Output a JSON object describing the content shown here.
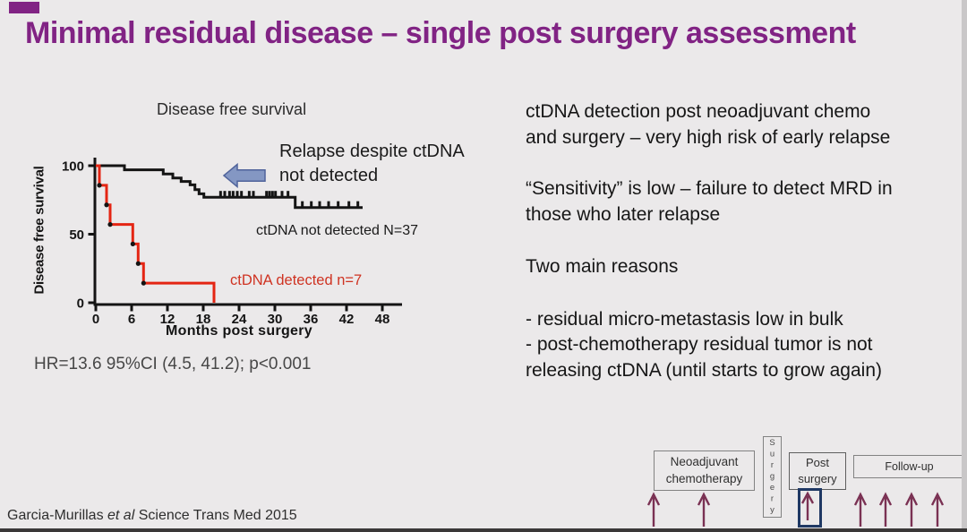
{
  "slide": {
    "title": "Minimal residual disease – single post surgery assessment",
    "citation": {
      "prefix": "Garcia-Murillas ",
      "italic": "et al",
      "suffix": " Science Trans Med 2015"
    }
  },
  "colors": {
    "accent_purple": "#812384",
    "curve_black": "#141414",
    "curve_red": "#e42513",
    "legend_red": "#cf3322",
    "annotation_arrow_blue": "#8497c3",
    "timeline_arrow_maroon": "#7a3153",
    "highlight_navy": "#1f3864"
  },
  "right_text": {
    "p1": "ctDNA detection post neoadjuvant chemo\nand surgery – very high risk of early relapse",
    "p2": "“Sensitivity” is low – failure to detect MRD in\nthose who later relapse",
    "p3": "Two main reasons",
    "p4": "- residual micro-metastasis low in bulk",
    "p5": "- post-chemotherapy residual tumor is not\nreleasing ctDNA (until starts to grow again)"
  },
  "chart_data": {
    "type": "line",
    "subtype": "kaplan-meier-step",
    "title": "Disease free survival",
    "xlabel": "Months post surgery",
    "ylabel": "Disease free survival",
    "xlim": [
      0,
      48
    ],
    "ylim": [
      0,
      100
    ],
    "xticks": [
      0,
      6,
      12,
      18,
      24,
      30,
      36,
      42,
      48
    ],
    "yticks": [
      0,
      50,
      100
    ],
    "grid": false,
    "annotation": "Relapse despite ctDNA\nnot detected",
    "hr_text": "HR=13.6 95%CI (4.5, 41.2); p<0.001",
    "series": [
      {
        "name": "ctDNA not detected N=37",
        "color": "#141414",
        "steps": [
          [
            0,
            100
          ],
          [
            4.8,
            100
          ],
          [
            4.8,
            97
          ],
          [
            11.3,
            97
          ],
          [
            11.3,
            94
          ],
          [
            12.9,
            94
          ],
          [
            12.9,
            91
          ],
          [
            14.3,
            91
          ],
          [
            14.3,
            88.5
          ],
          [
            15.8,
            88.5
          ],
          [
            15.8,
            86
          ],
          [
            16.6,
            86
          ],
          [
            16.6,
            82.5
          ],
          [
            17.3,
            82.5
          ],
          [
            17.3,
            79.5
          ],
          [
            18.1,
            79.5
          ],
          [
            18.1,
            77
          ],
          [
            33.4,
            77
          ],
          [
            33.4,
            69.5
          ],
          [
            44.7,
            69.5
          ]
        ],
        "censor_marks": [
          [
            20.9,
            77
          ],
          [
            21.6,
            77
          ],
          [
            22.4,
            77
          ],
          [
            23.0,
            77
          ],
          [
            23.7,
            77
          ],
          [
            24.4,
            77
          ],
          [
            25.7,
            77
          ],
          [
            26.4,
            77
          ],
          [
            28.6,
            77
          ],
          [
            29.1,
            77
          ],
          [
            29.6,
            77
          ],
          [
            30.1,
            77
          ],
          [
            31.2,
            77
          ],
          [
            32.2,
            77
          ],
          [
            34.6,
            69.5
          ],
          [
            36.1,
            69.5
          ],
          [
            37.5,
            69.5
          ],
          [
            39.0,
            69.5
          ],
          [
            40.6,
            69.5
          ],
          [
            42.4,
            69.5
          ],
          [
            43.9,
            69.5
          ]
        ]
      },
      {
        "name": "ctDNA detected n=7",
        "color": "#e42513",
        "steps": [
          [
            0,
            100
          ],
          [
            0.6,
            100
          ],
          [
            0.6,
            85.7
          ],
          [
            1.8,
            85.7
          ],
          [
            1.8,
            71.4
          ],
          [
            2.4,
            71.4
          ],
          [
            2.4,
            57.1
          ],
          [
            6.2,
            57.1
          ],
          [
            6.2,
            42.9
          ],
          [
            7.1,
            42.9
          ],
          [
            7.1,
            28.6
          ],
          [
            8.0,
            28.6
          ],
          [
            8.0,
            14.3
          ],
          [
            19.8,
            14.3
          ],
          [
            19.8,
            0
          ]
        ],
        "event_dots": [
          [
            0.6,
            85.7
          ],
          [
            1.8,
            71.4
          ],
          [
            2.4,
            57.1
          ],
          [
            6.2,
            42.9
          ],
          [
            7.1,
            28.6
          ],
          [
            8.0,
            14.3
          ]
        ]
      }
    ]
  },
  "timeline": {
    "neoadjuvant": "Neoadjuvant chemotherapy",
    "surgery": "Surgery",
    "post_surgery": "Post surgery",
    "follow_up": "Follow-up"
  }
}
